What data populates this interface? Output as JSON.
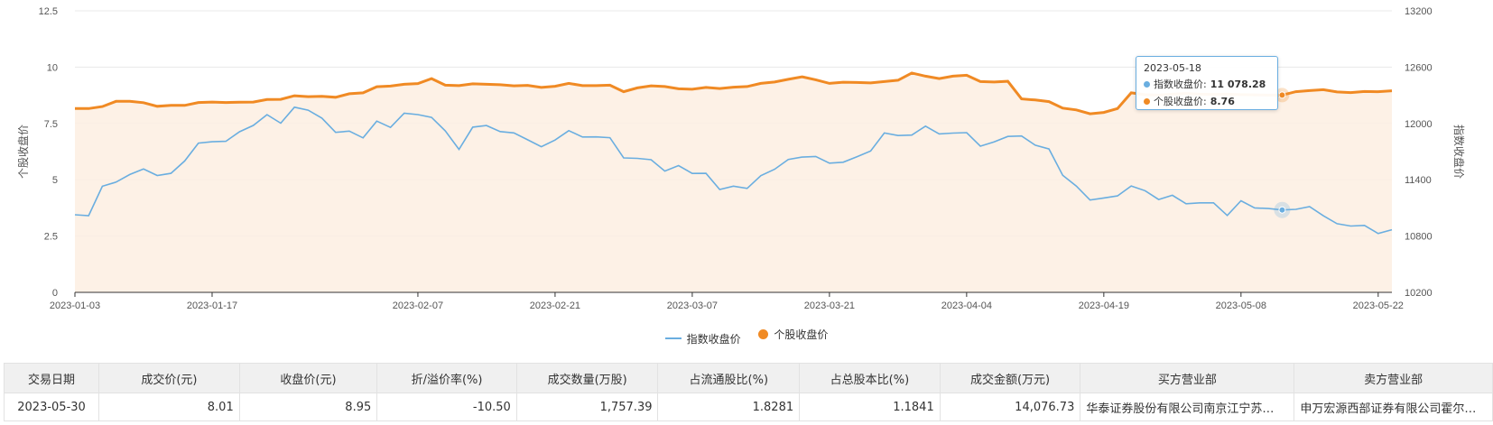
{
  "chart_data": {
    "type": "line",
    "x_ticks": [
      "2023-01-03",
      "2023-01-17",
      "2023-02-07",
      "2023-02-21",
      "2023-03-07",
      "2023-03-21",
      "2023-04-04",
      "2023-04-19",
      "2023-05-08",
      "2023-05-22"
    ],
    "y_left": {
      "label": "个股收盘价",
      "ticks": [
        "0",
        "2.5",
        "5",
        "7.5",
        "10",
        "12.5"
      ],
      "min": 0,
      "max": 12.5
    },
    "y_right": {
      "label": "指数收盘价",
      "ticks": [
        "10200",
        "10800",
        "11400",
        "12000",
        "12600",
        "13200"
      ],
      "min": 10200,
      "max": 13200
    },
    "grid": true,
    "legend_position": "bottom",
    "series": [
      {
        "name": "指数收盘价",
        "axis": "right",
        "color": "#6aaee0",
        "values": [
          11027,
          11017,
          11331,
          11375,
          11456,
          11514,
          11445,
          11468,
          11600,
          11790,
          11805,
          11810,
          11912,
          11979,
          12093,
          12003,
          12173,
          12141,
          12057,
          11905,
          11918,
          11846,
          12025,
          11958,
          12110,
          12094,
          12064,
          11921,
          11723,
          11961,
          11978,
          11913,
          11899,
          11826,
          11752,
          11823,
          11923,
          11856,
          11857,
          11848,
          11633,
          11628,
          11613,
          11492,
          11551,
          11467,
          11468,
          11296,
          11332,
          11308,
          11443,
          11512,
          11616,
          11641,
          11648,
          11577,
          11587,
          11645,
          11707,
          11898,
          11871,
          11876,
          11971,
          11888,
          11897,
          11902,
          11758,
          11803,
          11862,
          11866,
          11768,
          11728,
          11448,
          11333,
          11184,
          11206,
          11228,
          11334,
          11284,
          11189,
          11235,
          11144,
          11154,
          11154,
          11019,
          11176,
          11100,
          11093,
          11078,
          11085,
          11113,
          11016,
          10932,
          10907,
          10913,
          10827,
          10867
        ]
      },
      {
        "name": "个股收盘价",
        "axis": "left",
        "color": "#f08a24",
        "values": [
          8.16,
          8.16,
          8.25,
          8.48,
          8.48,
          8.42,
          8.26,
          8.3,
          8.3,
          8.43,
          8.45,
          8.43,
          8.44,
          8.45,
          8.56,
          8.57,
          8.73,
          8.69,
          8.7,
          8.66,
          8.82,
          8.86,
          9.13,
          9.16,
          9.24,
          9.27,
          9.49,
          9.2,
          9.18,
          9.26,
          9.24,
          9.22,
          9.17,
          9.19,
          9.1,
          9.15,
          9.28,
          9.18,
          9.18,
          9.2,
          8.91,
          9.08,
          9.17,
          9.14,
          9.04,
          9.02,
          9.1,
          9.05,
          9.11,
          9.14,
          9.28,
          9.34,
          9.46,
          9.57,
          9.44,
          9.28,
          9.33,
          9.32,
          9.3,
          9.36,
          9.42,
          9.74,
          9.6,
          9.49,
          9.6,
          9.64,
          9.36,
          9.34,
          9.37,
          8.59,
          8.54,
          8.47,
          8.18,
          8.1,
          7.93,
          7.99,
          8.16,
          8.86,
          8.78,
          8.76,
          8.8,
          8.83,
          8.8,
          8.79,
          8.8,
          8.78,
          8.77,
          8.76,
          8.76,
          8.91,
          8.96,
          9.0,
          8.9,
          8.87,
          8.92,
          8.91,
          8.95
        ]
      }
    ],
    "highlight_index": 88
  },
  "tooltip": {
    "date": "2023-05-18",
    "index_label": "指数收盘价:",
    "index_value": "11 078.28",
    "stock_label": "个股收盘价:",
    "stock_value": "8.76"
  },
  "legend": {
    "index": "指数收盘价",
    "stock": "个股收盘价"
  },
  "table": {
    "headers": [
      "交易日期",
      "成交价(元)",
      "收盘价(元)",
      "折/溢价率(%)",
      "成交数量(万股)",
      "占流通股比(%)",
      "占总股本比(%)",
      "成交金额(万元)",
      "买方营业部",
      "卖方营业部"
    ],
    "row": {
      "date": "2023-05-30",
      "price": "8.01",
      "close": "8.95",
      "premium": "-10.50",
      "volume": "1,757.39",
      "float_pct": "1.8281",
      "total_pct": "1.1841",
      "amount": "14,076.73",
      "buyer": "华泰证券股份有限公司南京江宁苏…",
      "seller": "申万宏源西部证券有限公司霍尔…"
    }
  }
}
